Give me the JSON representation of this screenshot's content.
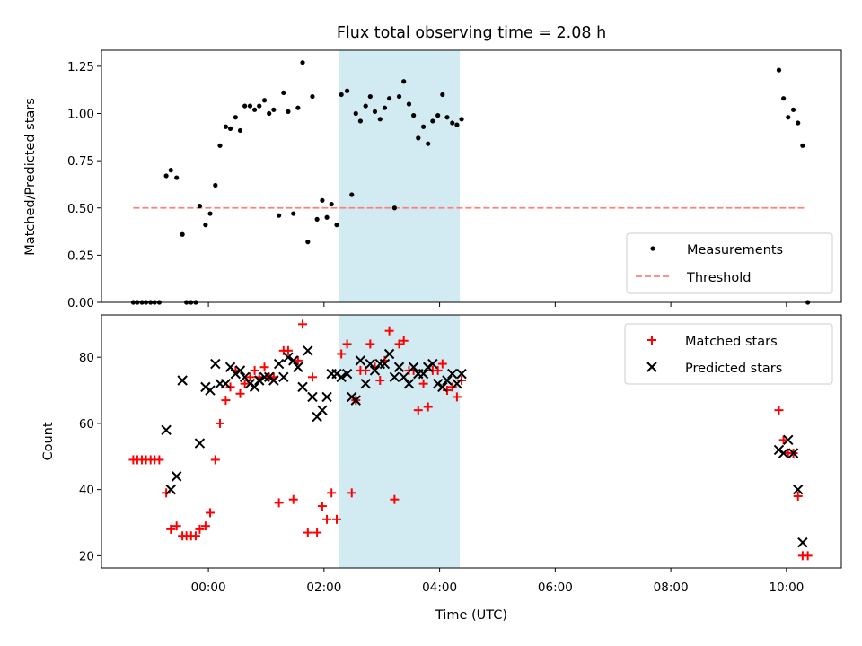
{
  "chart_data": {
    "title": "Flux total observing time = 2.08 h",
    "xlabel": "Time (UTC)",
    "x_ticks": [
      "00:00",
      "02:00",
      "04:00",
      "06:00",
      "08:00",
      "10:00"
    ],
    "x_tick_hours": [
      0,
      2,
      4,
      6,
      8,
      10
    ],
    "xlim_hours": [
      -1.85,
      10.95
    ],
    "shaded_interval_hours": [
      2.25,
      4.35
    ],
    "shade_color": "#add8e6",
    "panels": [
      {
        "type": "scatter",
        "ylabel": "Matched/Predicted stars",
        "ylim": [
          0,
          1.335
        ],
        "y_ticks": [
          "0.00",
          "0.25",
          "0.50",
          "0.75",
          "1.00",
          "1.25"
        ],
        "y_tick_values": [
          0,
          0.25,
          0.5,
          0.75,
          1.0,
          1.25
        ],
        "legend_position": "lower-right",
        "threshold": {
          "name": "Threshold",
          "value": 0.5,
          "x_range_hours": [
            -1.3,
            10.35
          ],
          "color": "#ff7f7f"
        },
        "series": [
          {
            "name": "Measurements",
            "marker": "dot",
            "color": "#000000",
            "points": [
              [
                -1.3,
                0.0
              ],
              [
                -1.23,
                0.0
              ],
              [
                -1.15,
                0.0
              ],
              [
                -1.08,
                0.0
              ],
              [
                -1.0,
                0.0
              ],
              [
                -0.93,
                0.0
              ],
              [
                -0.85,
                0.0
              ],
              [
                -0.73,
                0.67
              ],
              [
                -0.65,
                0.7
              ],
              [
                -0.55,
                0.66
              ],
              [
                -0.45,
                0.36
              ],
              [
                -0.38,
                0.0
              ],
              [
                -0.3,
                0.0
              ],
              [
                -0.22,
                0.0
              ],
              [
                -0.15,
                0.51
              ],
              [
                -0.05,
                0.41
              ],
              [
                0.03,
                0.47
              ],
              [
                0.12,
                0.62
              ],
              [
                0.2,
                0.83
              ],
              [
                0.3,
                0.93
              ],
              [
                0.38,
                0.92
              ],
              [
                0.47,
                0.98
              ],
              [
                0.55,
                0.91
              ],
              [
                0.63,
                1.04
              ],
              [
                0.72,
                1.04
              ],
              [
                0.8,
                1.02
              ],
              [
                0.88,
                1.04
              ],
              [
                0.97,
                1.07
              ],
              [
                1.05,
                1.0
              ],
              [
                1.13,
                1.02
              ],
              [
                1.22,
                0.46
              ],
              [
                1.3,
                1.11
              ],
              [
                1.38,
                1.01
              ],
              [
                1.47,
                0.47
              ],
              [
                1.55,
                1.03
              ],
              [
                1.63,
                1.27
              ],
              [
                1.72,
                0.32
              ],
              [
                1.8,
                1.09
              ],
              [
                1.88,
                0.44
              ],
              [
                1.97,
                0.54
              ],
              [
                2.05,
                0.45
              ],
              [
                2.13,
                0.52
              ],
              [
                2.22,
                0.41
              ],
              [
                2.3,
                1.1
              ],
              [
                2.4,
                1.12
              ],
              [
                2.48,
                0.57
              ],
              [
                2.55,
                1.0
              ],
              [
                2.63,
                0.96
              ],
              [
                2.72,
                1.04
              ],
              [
                2.8,
                1.09
              ],
              [
                2.88,
                1.01
              ],
              [
                2.97,
                0.97
              ],
              [
                3.05,
                1.03
              ],
              [
                3.13,
                1.08
              ],
              [
                3.22,
                0.5
              ],
              [
                3.3,
                1.09
              ],
              [
                3.38,
                1.17
              ],
              [
                3.47,
                1.05
              ],
              [
                3.55,
                0.99
              ],
              [
                3.63,
                0.87
              ],
              [
                3.72,
                0.93
              ],
              [
                3.8,
                0.84
              ],
              [
                3.88,
                0.96
              ],
              [
                3.97,
                0.99
              ],
              [
                4.05,
                1.1
              ],
              [
                4.13,
                0.98
              ],
              [
                4.22,
                0.95
              ],
              [
                4.3,
                0.94
              ],
              [
                4.38,
                0.97
              ],
              [
                9.87,
                1.23
              ],
              [
                9.95,
                1.08
              ],
              [
                10.03,
                0.98
              ],
              [
                10.12,
                1.02
              ],
              [
                10.2,
                0.95
              ],
              [
                10.28,
                0.83
              ],
              [
                10.37,
                0.0
              ]
            ]
          }
        ]
      },
      {
        "type": "scatter",
        "ylabel": "Count",
        "ylim": [
          16.3,
          92.8
        ],
        "y_ticks": [
          "20",
          "40",
          "60",
          "80"
        ],
        "y_tick_values": [
          20,
          40,
          60,
          80
        ],
        "legend_position": "upper-right",
        "series": [
          {
            "name": "Matched stars",
            "marker": "plus",
            "color": "#ff0000",
            "points": [
              [
                -1.3,
                49
              ],
              [
                -1.23,
                49
              ],
              [
                -1.15,
                49
              ],
              [
                -1.08,
                49
              ],
              [
                -1.0,
                49
              ],
              [
                -0.93,
                49
              ],
              [
                -0.85,
                49
              ],
              [
                -0.73,
                39
              ],
              [
                -0.65,
                28
              ],
              [
                -0.55,
                29
              ],
              [
                -0.45,
                26
              ],
              [
                -0.38,
                26
              ],
              [
                -0.3,
                26
              ],
              [
                -0.22,
                26
              ],
              [
                -0.15,
                28
              ],
              [
                -0.05,
                29
              ],
              [
                0.03,
                33
              ],
              [
                0.12,
                49
              ],
              [
                0.2,
                60
              ],
              [
                0.3,
                67
              ],
              [
                0.38,
                71
              ],
              [
                0.47,
                76
              ],
              [
                0.55,
                69
              ],
              [
                0.63,
                72
              ],
              [
                0.72,
                74
              ],
              [
                0.8,
                76
              ],
              [
                0.88,
                74
              ],
              [
                0.97,
                77
              ],
              [
                1.05,
                74
              ],
              [
                1.13,
                74
              ],
              [
                1.22,
                36
              ],
              [
                1.3,
                82
              ],
              [
                1.38,
                82
              ],
              [
                1.47,
                37
              ],
              [
                1.55,
                79
              ],
              [
                1.63,
                90
              ],
              [
                1.72,
                27
              ],
              [
                1.8,
                74
              ],
              [
                1.88,
                27
              ],
              [
                1.97,
                35
              ],
              [
                2.05,
                31
              ],
              [
                2.13,
                39
              ],
              [
                2.22,
                31
              ],
              [
                2.3,
                81
              ],
              [
                2.4,
                84
              ],
              [
                2.48,
                39
              ],
              [
                2.55,
                67
              ],
              [
                2.63,
                76
              ],
              [
                2.72,
                76
              ],
              [
                2.8,
                84
              ],
              [
                2.88,
                77
              ],
              [
                2.97,
                73
              ],
              [
                3.05,
                79
              ],
              [
                3.13,
                88
              ],
              [
                3.22,
                37
              ],
              [
                3.3,
                84
              ],
              [
                3.38,
                85
              ],
              [
                3.47,
                76
              ],
              [
                3.55,
                76
              ],
              [
                3.63,
                64
              ],
              [
                3.72,
                72
              ],
              [
                3.8,
                65
              ],
              [
                3.88,
                76
              ],
              [
                3.97,
                76
              ],
              [
                4.05,
                78
              ],
              [
                4.13,
                70
              ],
              [
                4.22,
                71
              ],
              [
                4.3,
                68
              ],
              [
                4.38,
                73
              ],
              [
                9.87,
                64
              ],
              [
                9.95,
                55
              ],
              [
                10.03,
                51
              ],
              [
                10.12,
                51
              ],
              [
                10.2,
                38
              ],
              [
                10.28,
                20
              ],
              [
                10.37,
                20
              ]
            ]
          },
          {
            "name": "Predicted stars",
            "marker": "x",
            "color": "#000000",
            "points": [
              [
                -0.73,
                58
              ],
              [
                -0.65,
                40
              ],
              [
                -0.55,
                44
              ],
              [
                -0.45,
                73
              ],
              [
                -0.15,
                54
              ],
              [
                -0.05,
                71
              ],
              [
                0.03,
                70
              ],
              [
                0.12,
                78
              ],
              [
                0.2,
                72
              ],
              [
                0.3,
                72
              ],
              [
                0.38,
                77
              ],
              [
                0.47,
                75
              ],
              [
                0.55,
                76
              ],
              [
                0.63,
                74
              ],
              [
                0.72,
                72
              ],
              [
                0.8,
                71
              ],
              [
                0.88,
                73
              ],
              [
                0.97,
                74
              ],
              [
                1.05,
                74
              ],
              [
                1.13,
                73
              ],
              [
                1.22,
                78
              ],
              [
                1.3,
                74
              ],
              [
                1.38,
                80
              ],
              [
                1.47,
                79
              ],
              [
                1.55,
                77
              ],
              [
                1.63,
                71
              ],
              [
                1.72,
                82
              ],
              [
                1.8,
                68
              ],
              [
                1.88,
                62
              ],
              [
                1.97,
                64
              ],
              [
                2.05,
                68
              ],
              [
                2.13,
                75
              ],
              [
                2.22,
                75
              ],
              [
                2.3,
                74
              ],
              [
                2.4,
                75
              ],
              [
                2.48,
                68
              ],
              [
                2.55,
                67
              ],
              [
                2.63,
                79
              ],
              [
                2.72,
                72
              ],
              [
                2.8,
                78
              ],
              [
                2.88,
                76
              ],
              [
                2.97,
                78
              ],
              [
                3.05,
                78
              ],
              [
                3.13,
                81
              ],
              [
                3.22,
                74
              ],
              [
                3.3,
                77
              ],
              [
                3.38,
                74
              ],
              [
                3.47,
                72
              ],
              [
                3.55,
                77
              ],
              [
                3.63,
                75
              ],
              [
                3.72,
                75
              ],
              [
                3.8,
                77
              ],
              [
                3.88,
                78
              ],
              [
                3.97,
                72
              ],
              [
                4.05,
                71
              ],
              [
                4.13,
                73
              ],
              [
                4.22,
                75
              ],
              [
                4.3,
                72
              ],
              [
                4.38,
                75
              ],
              [
                9.87,
                52
              ],
              [
                9.95,
                51
              ],
              [
                10.03,
                55
              ],
              [
                10.12,
                51
              ],
              [
                10.2,
                40
              ],
              [
                10.28,
                24
              ]
            ]
          }
        ]
      }
    ]
  }
}
